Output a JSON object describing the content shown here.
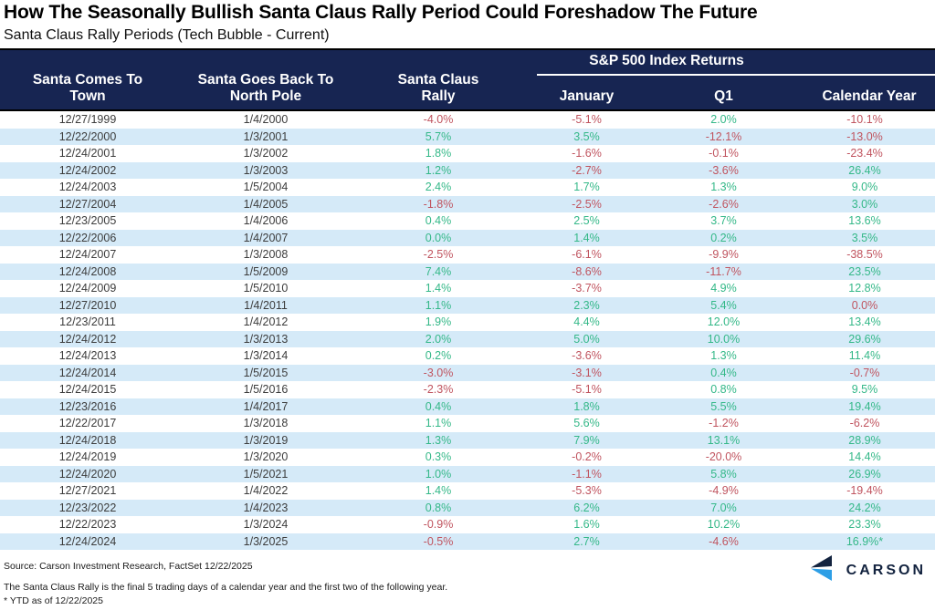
{
  "title": "How The Seasonally Bullish Santa Claus Rally Period Could Foreshadow The Future",
  "subtitle": "Santa Claus Rally Periods (Tech Bubble - Current)",
  "chart_data": {
    "type": "table",
    "group_header": "S&P 500 Index Returns",
    "group_span_columns": [
      "January",
      "Q1",
      "Calendar Year"
    ],
    "columns": [
      "Santa Comes To\nTown",
      "Santa Goes Back To\nNorth Pole",
      "Santa Claus\nRally",
      "January",
      "Q1",
      "Calendar Year"
    ],
    "rows": [
      [
        "12/27/1999",
        "1/4/2000",
        "-4.0%",
        "-5.1%",
        "2.0%",
        "-10.1%"
      ],
      [
        "12/22/2000",
        "1/3/2001",
        "5.7%",
        "3.5%",
        "-12.1%",
        "-13.0%"
      ],
      [
        "12/24/2001",
        "1/3/2002",
        "1.8%",
        "-1.6%",
        "-0.1%",
        "-23.4%"
      ],
      [
        "12/24/2002",
        "1/3/2003",
        "1.2%",
        "-2.7%",
        "-3.6%",
        "26.4%"
      ],
      [
        "12/24/2003",
        "1/5/2004",
        "2.4%",
        "1.7%",
        "1.3%",
        "9.0%"
      ],
      [
        "12/27/2004",
        "1/4/2005",
        "-1.8%",
        "-2.5%",
        "-2.6%",
        "3.0%"
      ],
      [
        "12/23/2005",
        "1/4/2006",
        "0.4%",
        "2.5%",
        "3.7%",
        "13.6%"
      ],
      [
        "12/22/2006",
        "1/4/2007",
        "0.0%",
        "1.4%",
        "0.2%",
        "3.5%"
      ],
      [
        "12/24/2007",
        "1/3/2008",
        "-2.5%",
        "-6.1%",
        "-9.9%",
        "-38.5%"
      ],
      [
        "12/24/2008",
        "1/5/2009",
        "7.4%",
        "-8.6%",
        "-11.7%",
        "23.5%"
      ],
      [
        "12/24/2009",
        "1/5/2010",
        "1.4%",
        "-3.7%",
        "4.9%",
        "12.8%"
      ],
      [
        "12/27/2010",
        "1/4/2011",
        "1.1%",
        "2.3%",
        "5.4%",
        "0.0%"
      ],
      [
        "12/23/2011",
        "1/4/2012",
        "1.9%",
        "4.4%",
        "12.0%",
        "13.4%"
      ],
      [
        "12/24/2012",
        "1/3/2013",
        "2.0%",
        "5.0%",
        "10.0%",
        "29.6%"
      ],
      [
        "12/24/2013",
        "1/3/2014",
        "0.2%",
        "-3.6%",
        "1.3%",
        "11.4%"
      ],
      [
        "12/24/2014",
        "1/5/2015",
        "-3.0%",
        "-3.1%",
        "0.4%",
        "-0.7%"
      ],
      [
        "12/24/2015",
        "1/5/2016",
        "-2.3%",
        "-5.1%",
        "0.8%",
        "9.5%"
      ],
      [
        "12/23/2016",
        "1/4/2017",
        "0.4%",
        "1.8%",
        "5.5%",
        "19.4%"
      ],
      [
        "12/22/2017",
        "1/3/2018",
        "1.1%",
        "5.6%",
        "-1.2%",
        "-6.2%"
      ],
      [
        "12/24/2018",
        "1/3/2019",
        "1.3%",
        "7.9%",
        "13.1%",
        "28.9%"
      ],
      [
        "12/24/2019",
        "1/3/2020",
        "0.3%",
        "-0.2%",
        "-20.0%",
        "14.4%"
      ],
      [
        "12/24/2020",
        "1/5/2021",
        "1.0%",
        "-1.1%",
        "5.8%",
        "26.9%"
      ],
      [
        "12/27/2021",
        "1/4/2022",
        "1.4%",
        "-5.3%",
        "-4.9%",
        "-19.4%"
      ],
      [
        "12/23/2022",
        "1/4/2023",
        "0.8%",
        "6.2%",
        "7.0%",
        "24.2%"
      ],
      [
        "12/22/2023",
        "1/3/2024",
        "-0.9%",
        "1.6%",
        "10.2%",
        "23.3%"
      ],
      [
        "12/24/2024",
        "1/3/2025",
        "-0.5%",
        "2.7%",
        "-4.6%",
        "16.9%*"
      ]
    ],
    "value_colors": [
      "rrgr",
      "ggrr",
      "grrr",
      "grrg",
      "gggg",
      "rrrg",
      "gggg",
      "gggg",
      "rrrr",
      "grrg",
      "grgg",
      "gggr",
      "gggg",
      "gggg",
      "grgg",
      "rrgr",
      "rrgg",
      "gggg",
      "ggrr",
      "gggg",
      "grrg",
      "grgg",
      "grrr",
      "gggg",
      "rggg",
      "rgrg"
    ]
  },
  "colors": {
    "header_bg": "#172552",
    "stripe": "#d5eaf8",
    "positive": "#34b888",
    "negative": "#c0545f",
    "logo_navy": "#13233f",
    "logo_blue": "#2e9fe6"
  },
  "footer": {
    "source": "Source: Carson Investment Research, FactSet 12/22/2025",
    "definition": "The Santa Claus Rally is the final 5 trading days of a calendar year and the first two of the following year.",
    "ytd_note": "* YTD as of 12/22/2025"
  },
  "logo": {
    "brand": "CARSON"
  }
}
